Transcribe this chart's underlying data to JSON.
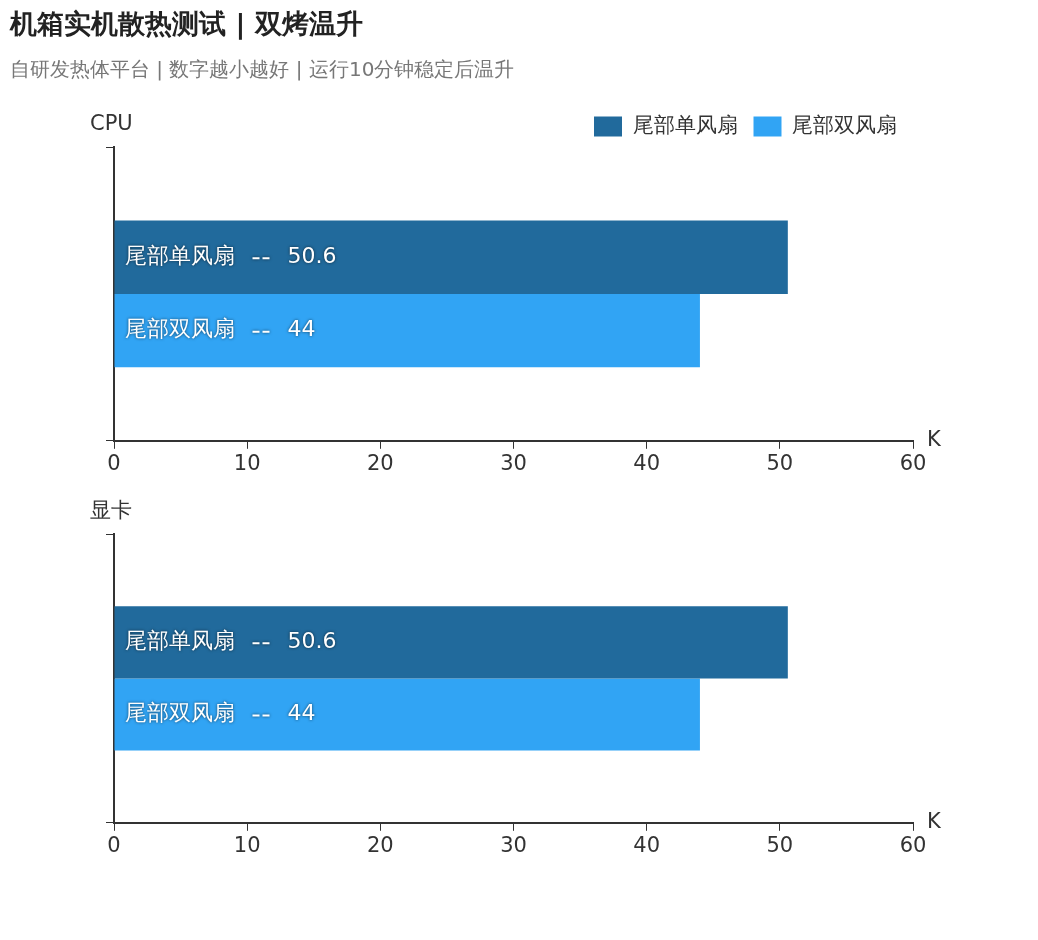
{
  "chart_data": [
    {
      "type": "bar",
      "title": "机箱实机散热测试 | 双烤温升",
      "subtitle": "自研发热体平台 | 数字越小越好 | 运行10分钟稳定后温升",
      "orientation": "horizontal",
      "ylabel": "CPU",
      "xlabel": "K",
      "categories": [
        null
      ],
      "series": [
        {
          "name": "尾部单风扇",
          "color": "#216a9c",
          "values": [
            50.6
          ]
        },
        {
          "name": "尾部双风扇",
          "color": "#31a4f4",
          "values": [
            44
          ]
        }
      ],
      "xlim": [
        0,
        60
      ],
      "xticks": [
        0,
        10,
        20,
        30,
        40,
        50,
        60
      ],
      "grid": false,
      "legend": "top right",
      "data_labels": true
    },
    {
      "type": "bar",
      "orientation": "horizontal",
      "ylabel": "显卡",
      "xlabel": "K",
      "categories": [
        null
      ],
      "series": [
        {
          "name": "尾部单风扇",
          "color": "#216a9c",
          "values": [
            50.6
          ]
        },
        {
          "name": "尾部双风扇",
          "color": "#31a4f4",
          "values": [
            44
          ]
        }
      ],
      "xlim": [
        0,
        60
      ],
      "xticks": [
        0,
        10,
        20,
        30,
        40,
        50,
        60
      ],
      "grid": false,
      "legend": false,
      "data_labels": true
    }
  ]
}
